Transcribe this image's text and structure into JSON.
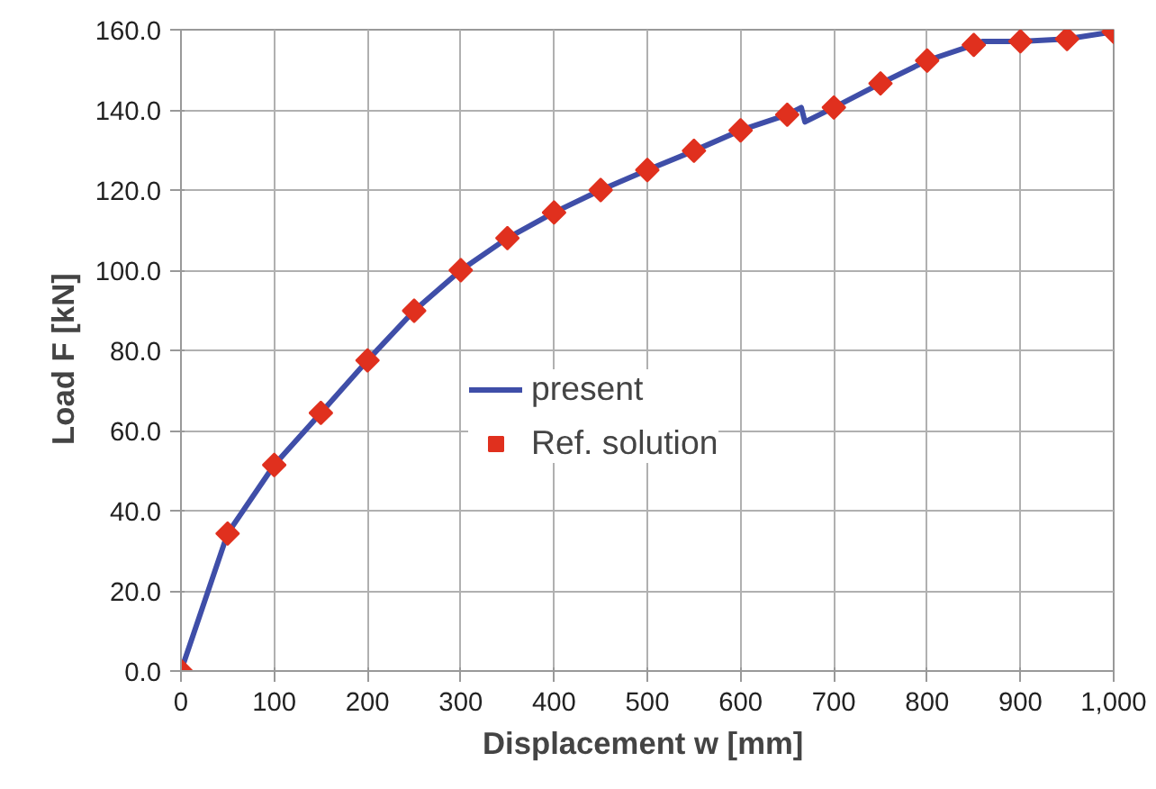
{
  "chart_data": {
    "type": "line",
    "xlabel": "Displacement w  [mm]",
    "ylabel": "Load  F  [kN]",
    "series": [
      {
        "name": "present",
        "color": "#3f4ea8",
        "line_style": "solid",
        "marker": "none",
        "x": [
          0,
          50,
          100,
          150,
          200,
          250,
          300,
          350,
          400,
          450,
          500,
          550,
          600,
          650,
          665,
          669,
          700,
          750,
          800,
          850,
          860,
          900,
          950,
          1000
        ],
        "values": [
          0,
          34.3,
          51.4,
          64.4,
          77.5,
          89.9,
          100.0,
          108.0,
          114.4,
          120.0,
          125.0,
          129.8,
          134.9,
          138.8,
          140.6,
          137.0,
          140.6,
          146.6,
          152.3,
          156.2,
          157.1,
          157.1,
          157.7,
          159.5
        ]
      },
      {
        "name": "Ref. solution",
        "type": "scatter",
        "color": "#e0301e",
        "marker": "diamond",
        "x": [
          0,
          50,
          100,
          150,
          200,
          250,
          300,
          350,
          400,
          450,
          500,
          550,
          600,
          650,
          700,
          750,
          800,
          850,
          900,
          950,
          1000
        ],
        "values": [
          0,
          34.3,
          51.4,
          64.4,
          77.5,
          89.9,
          100.0,
          108.0,
          114.4,
          120.0,
          125.0,
          129.8,
          134.9,
          138.8,
          140.6,
          146.6,
          152.3,
          156.2,
          157.1,
          157.7,
          159.5
        ]
      }
    ],
    "xlim": [
      0,
      1000
    ],
    "ylim": [
      0,
      160
    ],
    "xticks": [
      0,
      100,
      200,
      300,
      400,
      500,
      600,
      700,
      800,
      900,
      {
        "value": 1000,
        "label": "1,000"
      }
    ],
    "yticks": [
      {
        "value": 0,
        "label": "0.0"
      },
      {
        "value": 20,
        "label": "20.0"
      },
      {
        "value": 40,
        "label": "40.0"
      },
      {
        "value": 60,
        "label": "60.0"
      },
      {
        "value": 80,
        "label": "80.0"
      },
      {
        "value": 100,
        "label": "100.0"
      },
      {
        "value": 120,
        "label": "120.0"
      },
      {
        "value": 140,
        "label": "140.0"
      },
      {
        "value": 160,
        "label": "160.0"
      }
    ],
    "grid": true,
    "legend": "center"
  }
}
